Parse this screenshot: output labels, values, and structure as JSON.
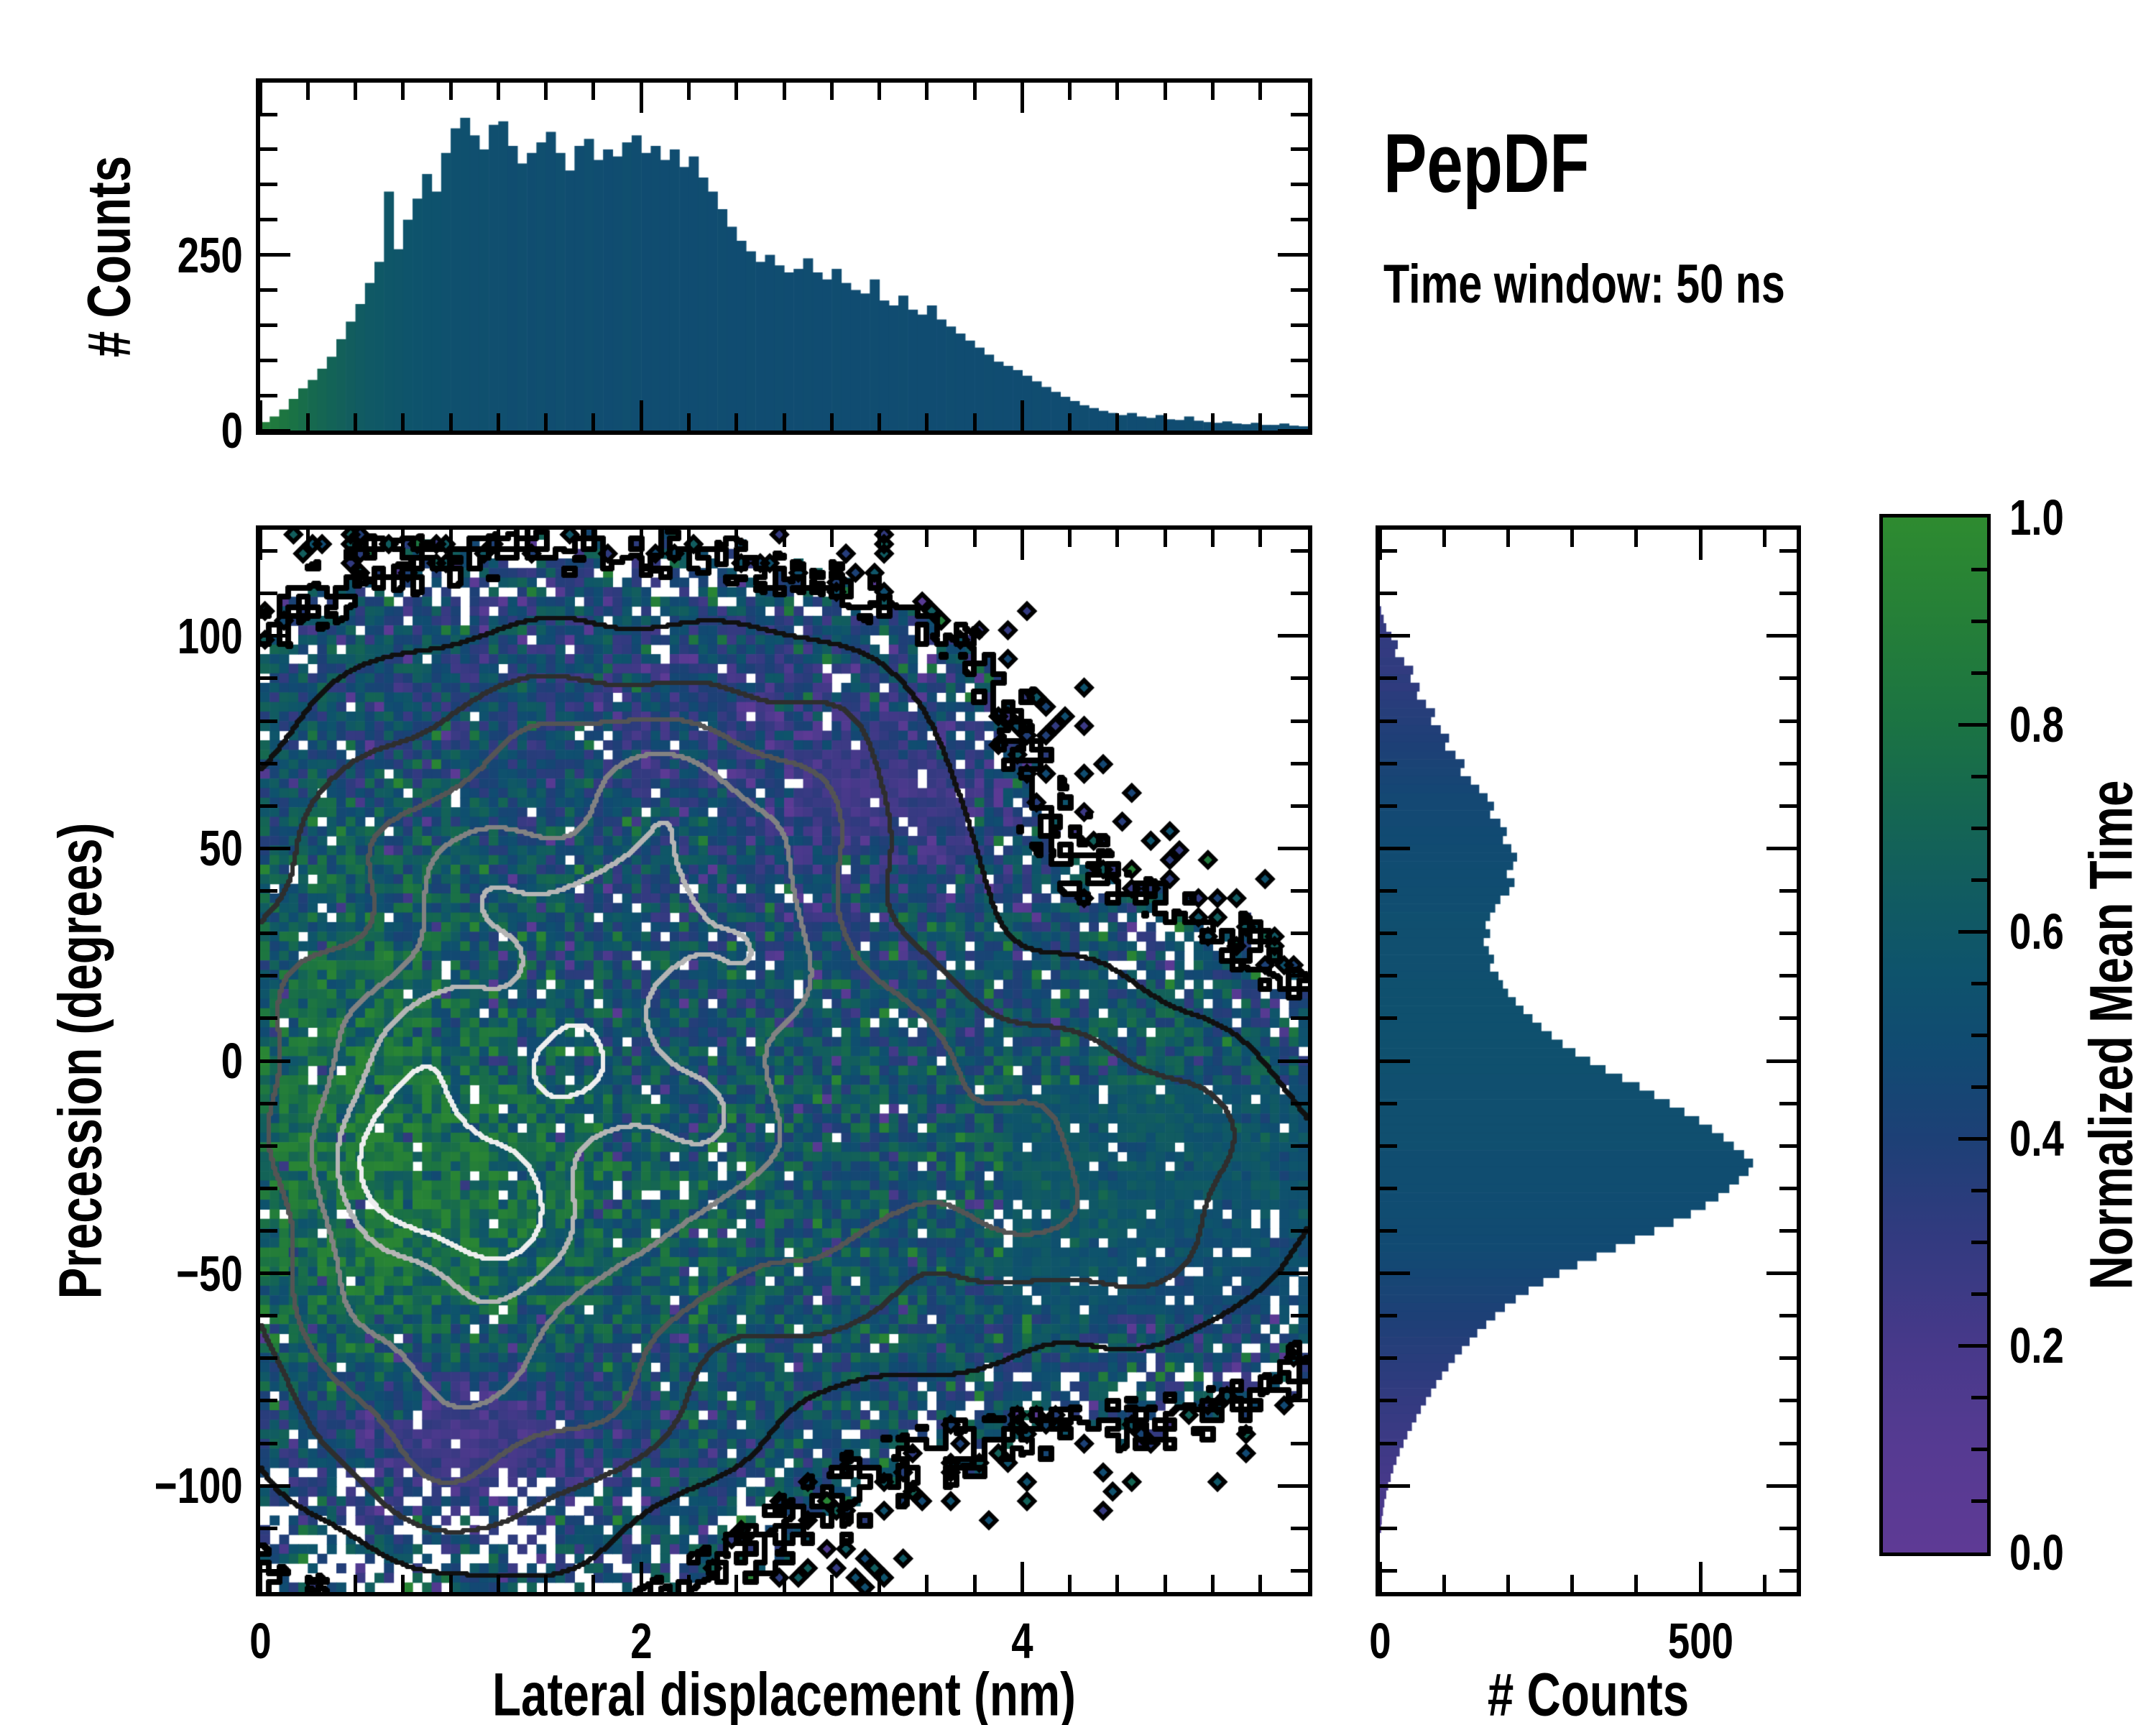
{
  "header": {
    "title": "PepDF",
    "subtitle": "Time window: 50 ns"
  },
  "colors": {
    "background": "#ffffff",
    "frame": "#000000",
    "colormap": [
      [
        0.0,
        "#5e3a95"
      ],
      [
        0.1,
        "#563a92"
      ],
      [
        0.2,
        "#47398a"
      ],
      [
        0.3,
        "#333a80"
      ],
      [
        0.4,
        "#1d4076"
      ],
      [
        0.48,
        "#114a72"
      ],
      [
        0.56,
        "#0e536c"
      ],
      [
        0.64,
        "#115c60"
      ],
      [
        0.72,
        "#156751"
      ],
      [
        0.8,
        "#1b7343"
      ],
      [
        0.9,
        "#257f38"
      ],
      [
        1.0,
        "#2e8b30"
      ]
    ]
  },
  "chart_data": [
    {
      "id": "top_histogram",
      "type": "bar",
      "ylabel": "# Counts",
      "x_range": [
        0,
        5.5
      ],
      "y_range": [
        0,
        495
      ],
      "bin_width": 0.05,
      "yticks_labeled": [
        [
          0,
          "0"
        ],
        [
          250,
          "250"
        ]
      ],
      "ytick_minors": [
        50,
        100,
        150,
        200,
        300,
        350,
        400,
        450
      ],
      "xticks": [
        0,
        2,
        4
      ],
      "xtick_minor_step": 0.25,
      "values": [
        12,
        20,
        30,
        45,
        60,
        72,
        88,
        105,
        130,
        155,
        180,
        210,
        240,
        340,
        258,
        300,
        330,
        365,
        340,
        395,
        430,
        445,
        420,
        400,
        435,
        440,
        405,
        380,
        395,
        410,
        425,
        395,
        370,
        405,
        415,
        385,
        400,
        390,
        410,
        420,
        395,
        405,
        385,
        400,
        375,
        390,
        360,
        340,
        315,
        290,
        270,
        255,
        240,
        250,
        235,
        225,
        230,
        245,
        225,
        215,
        230,
        210,
        200,
        195,
        215,
        185,
        178,
        192,
        172,
        165,
        178,
        158,
        148,
        138,
        128,
        118,
        108,
        98,
        92,
        86,
        78,
        70,
        62,
        55,
        48,
        42,
        36,
        32,
        28,
        25,
        22,
        25,
        20,
        18,
        22,
        16,
        15,
        20,
        14,
        12,
        11,
        13,
        10,
        9,
        11,
        8,
        8,
        10,
        7,
        6
      ],
      "mean_time": [
        0.88,
        0.85,
        0.82,
        0.79,
        0.76,
        0.73,
        0.71,
        0.69,
        0.67,
        0.65,
        0.63,
        0.61,
        0.6,
        0.59,
        0.58,
        0.57,
        0.56,
        0.55,
        0.55,
        0.54,
        0.53,
        0.53,
        0.52,
        0.53,
        0.52,
        0.52,
        0.51,
        0.52,
        0.51,
        0.52,
        0.51,
        0.52,
        0.51,
        0.51,
        0.52,
        0.51,
        0.5,
        0.51,
        0.52,
        0.51,
        0.5,
        0.51,
        0.5,
        0.51,
        0.5,
        0.5,
        0.51,
        0.5,
        0.51,
        0.5,
        0.5,
        0.51,
        0.5,
        0.5,
        0.51,
        0.5,
        0.5,
        0.51,
        0.5,
        0.5,
        0.51,
        0.5,
        0.5,
        0.5,
        0.51,
        0.5,
        0.5,
        0.51,
        0.5,
        0.5,
        0.5,
        0.5,
        0.51,
        0.5,
        0.5,
        0.5,
        0.51,
        0.5,
        0.5,
        0.5,
        0.5,
        0.51,
        0.5,
        0.5,
        0.5,
        0.5,
        0.51,
        0.5,
        0.5,
        0.5,
        0.51,
        0.5,
        0.5,
        0.51,
        0.5,
        0.5,
        0.5,
        0.51,
        0.5,
        0.5,
        0.5,
        0.51,
        0.5,
        0.5,
        0.51,
        0.5,
        0.5,
        0.51,
        0.5,
        0.5
      ]
    },
    {
      "id": "main_heatmap",
      "type": "heatmap",
      "xlabel": "Lateral displacement (nm)",
      "ylabel": "Precession (degrees)",
      "x_range": [
        0,
        5.5
      ],
      "y_range": [
        -125,
        125
      ],
      "grid": [
        110,
        111
      ],
      "seed": 7,
      "xticks_labeled": [
        [
          0,
          "0"
        ],
        [
          2,
          "2"
        ],
        [
          4,
          "4"
        ]
      ],
      "xtick_minor_step": 0.25,
      "yticks_labeled": [
        [
          100,
          "100"
        ],
        [
          50,
          "50"
        ],
        [
          0,
          "0"
        ],
        [
          -50,
          "−50"
        ],
        [
          -100,
          "−100"
        ]
      ],
      "ytick_minor_step": 10,
      "value_field": "normalized mean time per bin (colored by colorbar)",
      "density_gaussians": [
        {
          "a": 1.0,
          "cx": 1.3,
          "cy": -12,
          "sx": 1.05,
          "sy": 52
        },
        {
          "a": 0.55,
          "cx": 0.85,
          "cy": -30,
          "sx": 0.45,
          "sy": 26
        },
        {
          "a": 0.45,
          "cx": 2.3,
          "cy": 38,
          "sx": 0.65,
          "sy": 26
        },
        {
          "a": 0.48,
          "cx": 3.4,
          "cy": -18,
          "sx": 1.0,
          "sy": 32
        },
        {
          "a": 0.34,
          "cx": 1.1,
          "cy": -88,
          "sx": 0.6,
          "sy": 20
        },
        {
          "a": 0.3,
          "cx": 1.6,
          "cy": 62,
          "sx": 0.95,
          "sy": 28
        },
        {
          "a": 0.3,
          "cx": 4.7,
          "cy": -30,
          "sx": 0.75,
          "sy": 28
        },
        {
          "a": 0.22,
          "cx": 2.9,
          "cy": 72,
          "sx": 0.6,
          "sy": 20
        }
      ],
      "tint_gaussians": [
        {
          "a": 0.26,
          "cx": 0.5,
          "cy": -20,
          "sx": 0.6,
          "sy": 45
        },
        {
          "a": 0.15,
          "cx": 1.7,
          "cy": -42,
          "sx": 1.0,
          "sy": 32
        },
        {
          "a": -0.38,
          "cx": 1.05,
          "cy": -88,
          "sx": 0.55,
          "sy": 15
        },
        {
          "a": -0.26,
          "cx": 3.3,
          "cy": 62,
          "sx": 0.6,
          "sy": 14
        },
        {
          "a": -0.12,
          "cx": 2.1,
          "cy": 88,
          "sx": 0.9,
          "sy": 14
        },
        {
          "a": 0.1,
          "cx": 4.6,
          "cy": -28,
          "sx": 0.9,
          "sy": 30
        },
        {
          "a": -0.1,
          "cx": 5.05,
          "cy": -62,
          "sx": 0.5,
          "sy": 14
        }
      ],
      "contour_levels": [
        0.2,
        0.38,
        0.58,
        0.82,
        1.05,
        1.28
      ],
      "contour_colors": [
        "#101010",
        "#2e2e2e",
        "#555555",
        "#828282",
        "#b5b5b5",
        "#eeeeee"
      ],
      "boundary_level": 0.075,
      "boundary_color": "#000000"
    },
    {
      "id": "right_histogram",
      "type": "bar",
      "orientation": "horizontal",
      "xlabel": "# Counts",
      "x_range": [
        0,
        650
      ],
      "y_range": [
        -125,
        125
      ],
      "bin_width": 2,
      "xticks_labeled": [
        [
          0,
          "0"
        ],
        [
          500,
          "500"
        ]
      ],
      "xtick_minors": [
        100,
        200,
        300,
        400,
        600
      ],
      "ytick_major_step": 50,
      "ytick_minor_step": 10,
      "values": [
        0,
        0,
        0,
        0,
        0,
        0,
        0,
        0,
        0,
        2,
        6,
        10,
        18,
        28,
        24,
        38,
        52,
        48,
        62,
        58,
        72,
        86,
        80,
        95,
        108,
        102,
        118,
        132,
        126,
        142,
        155,
        168,
        178,
        172,
        188,
        198,
        192,
        205,
        214,
        208,
        198,
        210,
        202,
        188,
        180,
        172,
        165,
        172,
        162,
        170,
        178,
        172,
        185,
        192,
        200,
        212,
        224,
        238,
        252,
        268,
        285,
        305,
        328,
        352,
        378,
        405,
        428,
        452,
        475,
        498,
        518,
        536,
        552,
        568,
        582,
        575,
        560,
        545,
        528,
        508,
        485,
        458,
        428,
        398,
        368,
        338,
        308,
        280,
        255,
        232,
        212,
        195,
        180,
        166,
        152,
        140,
        128,
        117,
        107,
        97,
        88,
        80,
        72,
        64,
        57,
        50,
        43,
        37,
        31,
        26,
        21,
        17,
        13,
        10,
        7,
        5,
        3,
        2,
        0,
        0,
        0,
        0,
        0,
        0,
        0
      ],
      "mean_time": [
        0.3,
        0.3,
        0.3,
        0.3,
        0.3,
        0.3,
        0.3,
        0.3,
        0.3,
        0.28,
        0.28,
        0.3,
        0.29,
        0.31,
        0.3,
        0.32,
        0.31,
        0.33,
        0.32,
        0.34,
        0.35,
        0.36,
        0.37,
        0.38,
        0.39,
        0.4,
        0.41,
        0.42,
        0.43,
        0.44,
        0.45,
        0.46,
        0.46,
        0.47,
        0.47,
        0.48,
        0.48,
        0.49,
        0.49,
        0.5,
        0.5,
        0.5,
        0.51,
        0.51,
        0.51,
        0.52,
        0.52,
        0.52,
        0.52,
        0.52,
        0.52,
        0.52,
        0.52,
        0.53,
        0.53,
        0.53,
        0.53,
        0.53,
        0.53,
        0.53,
        0.53,
        0.53,
        0.53,
        0.53,
        0.52,
        0.52,
        0.52,
        0.52,
        0.52,
        0.52,
        0.52,
        0.52,
        0.52,
        0.51,
        0.51,
        0.51,
        0.51,
        0.51,
        0.5,
        0.5,
        0.5,
        0.49,
        0.49,
        0.48,
        0.48,
        0.47,
        0.46,
        0.45,
        0.44,
        0.43,
        0.42,
        0.41,
        0.4,
        0.39,
        0.38,
        0.37,
        0.36,
        0.35,
        0.34,
        0.33,
        0.32,
        0.31,
        0.3,
        0.29,
        0.28,
        0.27,
        0.26,
        0.25,
        0.24,
        0.23,
        0.22,
        0.21,
        0.2,
        0.2,
        0.19,
        0.19,
        0.18,
        0.18,
        0.18,
        0.18,
        0.18,
        0.18,
        0.18,
        0.18,
        0.18
      ]
    },
    {
      "id": "colorbar",
      "type": "colorbar",
      "label": "Normalized Mean Time",
      "range": [
        0,
        1
      ],
      "ticks_labeled": [
        [
          1.0,
          "1.0"
        ],
        [
          0.8,
          "0.8"
        ],
        [
          0.6,
          "0.6"
        ],
        [
          0.4,
          "0.4"
        ],
        [
          0.2,
          "0.2"
        ],
        [
          0.0,
          "0.0"
        ]
      ],
      "tick_minor_step": 0.05
    }
  ]
}
